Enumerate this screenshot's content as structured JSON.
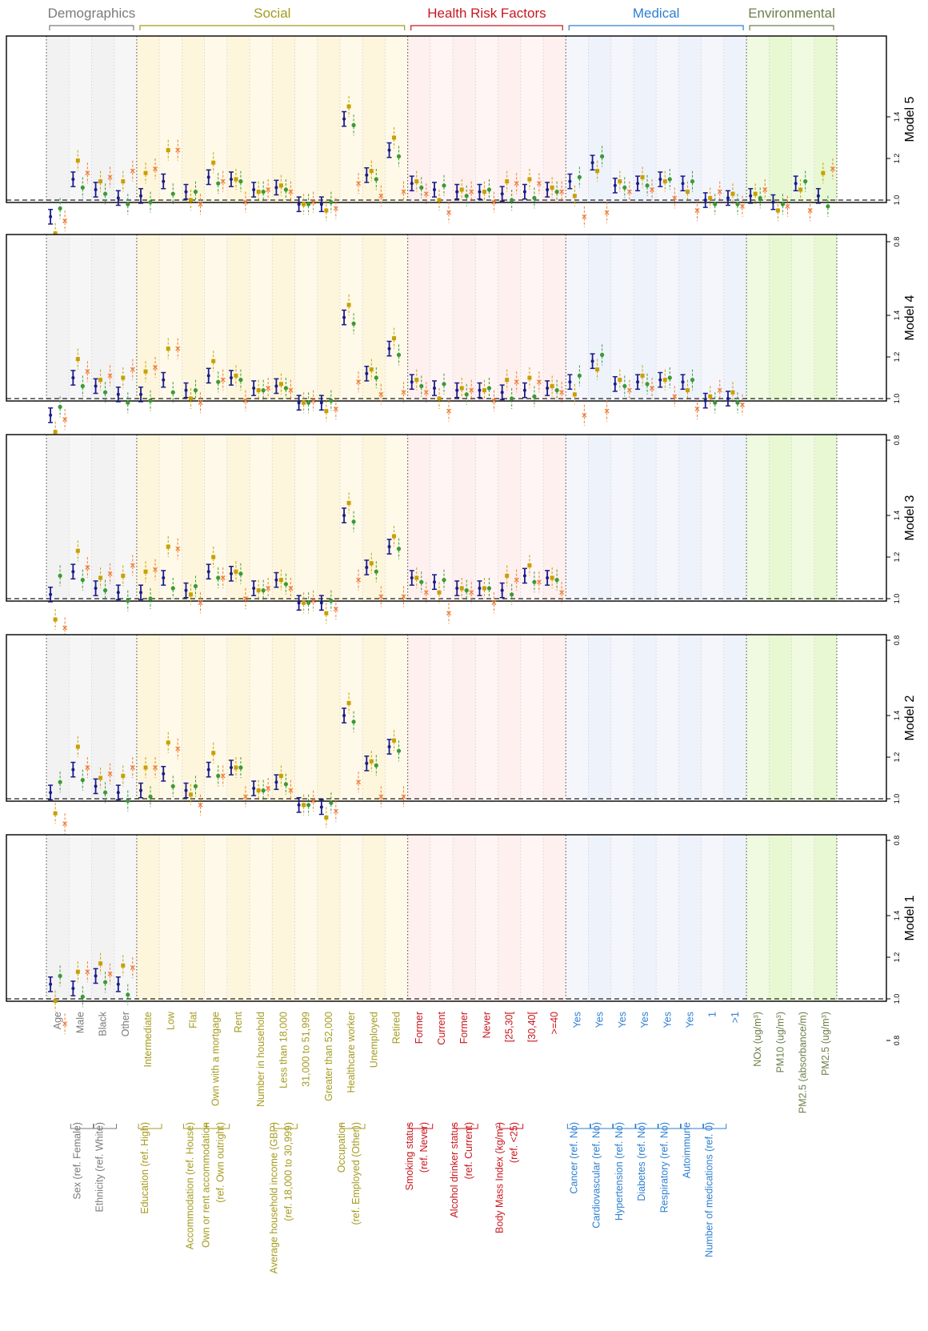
{
  "figure": {
    "groups": [
      {
        "label": "Demographics",
        "color": "#7a7a7a",
        "band": "#f2f2f2"
      },
      {
        "label": "Social",
        "color": "#a59b1e",
        "band": "#fdf6dc"
      },
      {
        "label": "Health Risk Factors",
        "color": "#c8161e",
        "band": "#fdf0ee"
      },
      {
        "label": "Medical",
        "color": "#2d7fd1",
        "band": "#eef2fa"
      },
      {
        "label": "Environmental",
        "color": "#6e7f4a",
        "band": "#e7f8d2"
      }
    ],
    "variables": [
      {
        "label": "Age",
        "group": 0,
        "header": "",
        "sub": ""
      },
      {
        "label": "Male",
        "group": 0,
        "header": "Sex (ref. Female)",
        "sub": ""
      },
      {
        "label": "Black",
        "group": 0,
        "header": "Ethnicity (ref. White)",
        "sub": ""
      },
      {
        "label": "Other",
        "group": 0,
        "header": "",
        "sub": ""
      },
      {
        "label": "Intermediate",
        "group": 1,
        "header": "Education (ref. High)",
        "sub": ""
      },
      {
        "label": "Low",
        "group": 1,
        "header": "",
        "sub": ""
      },
      {
        "label": "Flat",
        "group": 1,
        "header": "Accommodation (ref. House)",
        "sub": ""
      },
      {
        "label": "Own with a mortgage",
        "group": 1,
        "header": "Own or rent accommodation",
        "sub": "(ref. Own outright)"
      },
      {
        "label": "Rent",
        "group": 1,
        "header": "",
        "sub": ""
      },
      {
        "label": "Number in household",
        "group": 1,
        "header": "",
        "sub": ""
      },
      {
        "label": "Less than 18,000",
        "group": 1,
        "header": "Average household income (GBP)",
        "sub": "(ref. 18,000 to 30,999)"
      },
      {
        "label": "31,000 to 51,999",
        "group": 1,
        "header": "",
        "sub": ""
      },
      {
        "label": "Greater than 52,000",
        "group": 1,
        "header": "",
        "sub": ""
      },
      {
        "label": "Healthcare worker",
        "group": 1,
        "header": "Occupation",
        "sub": "(ref. Employed (Other))"
      },
      {
        "label": "Unemployed",
        "group": 1,
        "header": "",
        "sub": ""
      },
      {
        "label": "Retired",
        "group": 1,
        "header": "",
        "sub": ""
      },
      {
        "label": "Former",
        "group": 2,
        "header": "Smoking status",
        "sub": "(ref. Never)"
      },
      {
        "label": "Current",
        "group": 2,
        "header": "",
        "sub": ""
      },
      {
        "label": "Former",
        "group": 2,
        "header": "Alcohol drinker status",
        "sub": "(ref. Current)"
      },
      {
        "label": "Never",
        "group": 2,
        "header": "",
        "sub": ""
      },
      {
        "label": "[25,30[",
        "group": 2,
        "header": "Body Mass Index (kg/m²)",
        "sub": "(ref. <25)"
      },
      {
        "label": "[30,40[",
        "group": 2,
        "header": "",
        "sub": ""
      },
      {
        "label": ">=40",
        "group": 2,
        "header": "",
        "sub": ""
      },
      {
        "label": "Yes",
        "group": 3,
        "header": "Cancer (ref. No)",
        "sub": ""
      },
      {
        "label": "Yes",
        "group": 3,
        "header": "Cardiovascular (ref. No)",
        "sub": ""
      },
      {
        "label": "Yes",
        "group": 3,
        "header": "Hypertension (ref. No)",
        "sub": ""
      },
      {
        "label": "Yes",
        "group": 3,
        "header": "Diabetes (ref. No)",
        "sub": ""
      },
      {
        "label": "Yes",
        "group": 3,
        "header": "Respiratory (ref. No)",
        "sub": ""
      },
      {
        "label": "Yes",
        "group": 3,
        "header": "Autoimmune",
        "sub": ""
      },
      {
        "label": "1",
        "group": 3,
        "header": "Number of medications (ref. 0)",
        "sub": ""
      },
      {
        "label": ">1",
        "group": 3,
        "header": "",
        "sub": ""
      },
      {
        "label": "NOx (ug/m³)",
        "group": 4,
        "header": "",
        "sub": ""
      },
      {
        "label": "PM10 (ug/m³)",
        "group": 4,
        "header": "",
        "sub": ""
      },
      {
        "label": "PM2.5 (absorbance/m)",
        "group": 4,
        "header": "",
        "sub": ""
      },
      {
        "label": "PM2.5 (ug/m³)",
        "group": 4,
        "header": "",
        "sub": ""
      }
    ]
  },
  "chart_data": {
    "type": "scatter",
    "yticks": [
      "0.8",
      "1.0",
      "1.2",
      "1.4"
    ],
    "ylim": [
      0.75,
      1.57
    ],
    "reference_line": 1.0,
    "series_colors": [
      "#1b1b8a",
      "#c9a000",
      "#3a9b35",
      "#f07a35"
    ],
    "panels": [
      {
        "title": "Model 5",
        "estimates": [
          [
            0.92,
            0.84,
            0.96,
            0.9
          ],
          [
            1.1,
            1.19,
            1.06,
            1.13
          ],
          [
            1.05,
            1.09,
            1.03,
            1.11
          ],
          [
            1.01,
            1.09,
            0.98,
            1.14
          ],
          [
            1.02,
            1.13,
            0.99,
            1.15
          ],
          [
            1.09,
            1.24,
            1.03,
            1.24
          ],
          [
            1.04,
            1.0,
            1.04,
            0.98
          ],
          [
            1.11,
            1.18,
            1.08,
            1.09
          ],
          [
            1.1,
            1.1,
            1.09,
            0.99
          ],
          [
            1.05,
            1.04,
            1.04,
            1.05
          ],
          [
            1.06,
            1.07,
            1.05,
            1.04
          ],
          [
            0.98,
            0.98,
            0.98,
            0.99
          ],
          [
            0.98,
            0.95,
            0.99,
            0.96
          ],
          [
            1.39,
            1.45,
            1.36,
            1.08
          ],
          [
            1.12,
            1.14,
            1.1,
            1.02
          ],
          [
            1.24,
            1.3,
            1.21,
            1.04
          ],
          [
            1.08,
            1.09,
            1.06,
            1.03
          ],
          [
            1.05,
            1.0,
            1.07,
            0.94
          ],
          [
            1.04,
            1.05,
            1.02,
            1.04
          ],
          [
            1.04,
            1.04,
            1.05,
            0.99
          ],
          [
            1.03,
            1.09,
            1.0,
            1.08
          ],
          [
            1.04,
            1.1,
            1.01,
            1.08
          ],
          [
            1.05,
            1.06,
            1.04,
            1.04
          ],
          [
            1.09,
            1.02,
            1.11,
            0.92
          ],
          [
            1.18,
            1.14,
            1.21,
            0.94
          ],
          [
            1.07,
            1.09,
            1.06,
            1.04
          ],
          [
            1.08,
            1.11,
            1.07,
            1.05
          ],
          [
            1.1,
            1.09,
            1.1,
            1.01
          ],
          [
            1.08,
            1.04,
            1.09,
            0.95
          ],
          [
            1.0,
            1.01,
            0.98,
            1.04
          ],
          [
            1.01,
            1.03,
            0.98,
            0.97
          ],
          [
            1.02,
            1.03,
            1.01,
            1.05
          ],
          [
            0.99,
            0.95,
            0.98,
            0.97
          ],
          [
            1.08,
            1.05,
            1.09,
            0.95
          ],
          [
            1.02,
            1.13,
            0.97,
            1.15
          ]
        ]
      },
      {
        "title": "Model 4",
        "estimates": [
          [
            0.92,
            0.84,
            0.96,
            0.9
          ],
          [
            1.1,
            1.19,
            1.06,
            1.13
          ],
          [
            1.06,
            1.09,
            1.03,
            1.11
          ],
          [
            1.02,
            1.1,
            0.98,
            1.14
          ],
          [
            1.02,
            1.13,
            0.99,
            1.15
          ],
          [
            1.09,
            1.24,
            1.03,
            1.24
          ],
          [
            1.04,
            1.0,
            1.04,
            0.98
          ],
          [
            1.11,
            1.18,
            1.08,
            1.09
          ],
          [
            1.1,
            1.11,
            1.09,
            0.99
          ],
          [
            1.05,
            1.04,
            1.04,
            1.05
          ],
          [
            1.06,
            1.07,
            1.05,
            1.04
          ],
          [
            0.98,
            0.98,
            0.98,
            0.99
          ],
          [
            0.98,
            0.94,
            0.99,
            0.95
          ],
          [
            1.39,
            1.45,
            1.36,
            1.08
          ],
          [
            1.12,
            1.14,
            1.1,
            1.02
          ],
          [
            1.24,
            1.29,
            1.21,
            1.03
          ],
          [
            1.08,
            1.09,
            1.06,
            1.03
          ],
          [
            1.05,
            1.0,
            1.07,
            0.94
          ],
          [
            1.04,
            1.05,
            1.02,
            1.04
          ],
          [
            1.04,
            1.04,
            1.05,
            0.99
          ],
          [
            1.03,
            1.09,
            1.0,
            1.08
          ],
          [
            1.04,
            1.1,
            1.01,
            1.08
          ],
          [
            1.05,
            1.06,
            1.04,
            1.03
          ],
          [
            1.08,
            1.02,
            1.11,
            0.92
          ],
          [
            1.18,
            1.14,
            1.21,
            0.94
          ],
          [
            1.07,
            1.09,
            1.06,
            1.04
          ],
          [
            1.08,
            1.11,
            1.07,
            1.05
          ],
          [
            1.09,
            1.09,
            1.1,
            1.01
          ],
          [
            1.08,
            1.04,
            1.09,
            0.95
          ],
          [
            0.99,
            1.01,
            0.98,
            1.04
          ],
          [
            1.0,
            1.03,
            0.98,
            0.97
          ]
        ]
      },
      {
        "title": "Model 3",
        "estimates": [
          [
            1.02,
            0.9,
            1.11,
            0.86
          ],
          [
            1.13,
            1.23,
            1.09,
            1.15
          ],
          [
            1.05,
            1.1,
            1.04,
            1.12
          ],
          [
            1.03,
            1.11,
            0.99,
            1.16
          ],
          [
            1.03,
            1.13,
            1.0,
            1.14
          ],
          [
            1.1,
            1.25,
            1.05,
            1.24
          ],
          [
            1.04,
            1.02,
            1.06,
            0.98
          ],
          [
            1.13,
            1.2,
            1.1,
            1.1
          ],
          [
            1.12,
            1.13,
            1.12,
            1.0
          ],
          [
            1.05,
            1.04,
            1.04,
            1.05
          ],
          [
            1.09,
            1.09,
            1.07,
            1.05
          ],
          [
            0.98,
            0.98,
            0.98,
            0.99
          ],
          [
            0.98,
            0.93,
            0.99,
            0.95
          ],
          [
            1.4,
            1.46,
            1.37,
            1.09
          ],
          [
            1.15,
            1.17,
            1.13,
            1.01
          ],
          [
            1.25,
            1.3,
            1.24,
            1.01
          ],
          [
            1.1,
            1.1,
            1.08,
            1.03
          ],
          [
            1.08,
            1.03,
            1.09,
            0.93
          ],
          [
            1.05,
            1.05,
            1.04,
            1.03
          ],
          [
            1.05,
            1.05,
            1.05,
            0.98
          ],
          [
            1.04,
            1.11,
            1.02,
            1.09
          ],
          [
            1.11,
            1.16,
            1.08,
            1.08
          ],
          [
            1.1,
            1.1,
            1.09,
            1.03
          ]
        ]
      },
      {
        "title": "Model 2",
        "estimates": [
          [
            1.03,
            0.93,
            1.08,
            0.88
          ],
          [
            1.14,
            1.25,
            1.09,
            1.15
          ],
          [
            1.06,
            1.1,
            1.03,
            1.12
          ],
          [
            1.03,
            1.11,
            0.99,
            1.15
          ],
          [
            1.04,
            1.15,
            1.01,
            1.15
          ],
          [
            1.12,
            1.27,
            1.06,
            1.24
          ],
          [
            1.04,
            1.02,
            1.06,
            0.97
          ],
          [
            1.14,
            1.22,
            1.11,
            1.11
          ],
          [
            1.15,
            1.15,
            1.15,
            1.01
          ],
          [
            1.05,
            1.04,
            1.04,
            1.05
          ],
          [
            1.08,
            1.11,
            1.07,
            1.04
          ],
          [
            0.97,
            0.97,
            0.97,
            0.99
          ],
          [
            0.96,
            0.91,
            0.98,
            0.94
          ],
          [
            1.4,
            1.46,
            1.37,
            1.08
          ],
          [
            1.17,
            1.18,
            1.16,
            1.01
          ],
          [
            1.25,
            1.28,
            1.23,
            1.01
          ]
        ]
      },
      {
        "title": "Model 1",
        "estimates": [
          [
            1.07,
            0.99,
            1.11,
            0.88
          ],
          [
            1.05,
            1.13,
            1.01,
            1.13
          ],
          [
            1.11,
            1.17,
            1.08,
            1.12
          ],
          [
            1.07,
            1.16,
            1.02,
            1.15
          ]
        ]
      }
    ]
  }
}
